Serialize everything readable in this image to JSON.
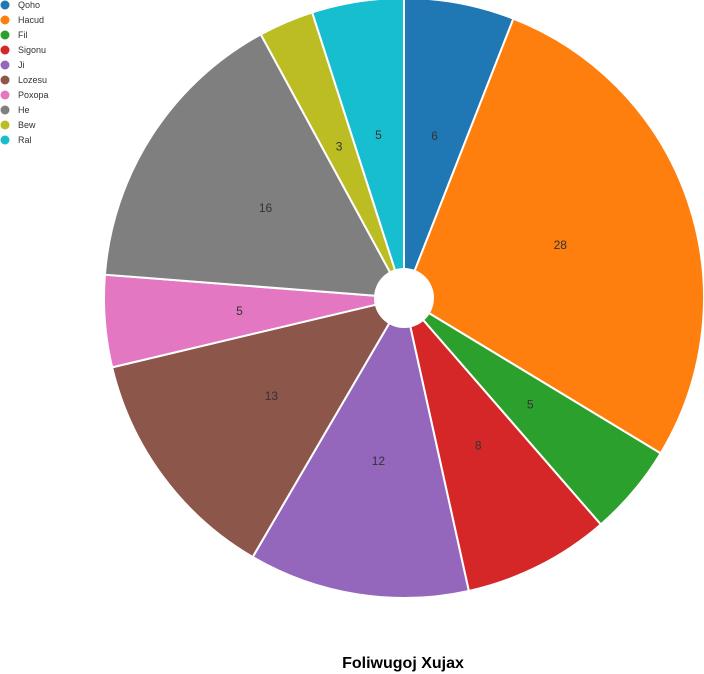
{
  "chart_data": {
    "type": "pie",
    "title": "Foliwugoj Xujax",
    "legend_position": "top-left",
    "categories": [
      "Qoho",
      "Hacud",
      "Fil",
      "Sigonu",
      "Ji",
      "Lozesu",
      "Poxopa",
      "He",
      "Bew",
      "Ral"
    ],
    "values": [
      6,
      28,
      5,
      8,
      12,
      13,
      5,
      16,
      3,
      5
    ],
    "colors": [
      "#1f77b4",
      "#ff7f0e",
      "#2ca02c",
      "#d62728",
      "#9467bd",
      "#8c564b",
      "#e377c2",
      "#7f7f7f",
      "#bcbd22",
      "#17becf"
    ],
    "donut_hole": true
  }
}
